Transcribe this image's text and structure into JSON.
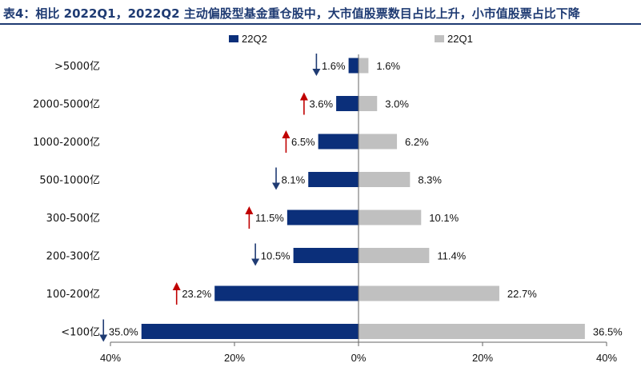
{
  "title": "表4：相比 2022Q1，2022Q2 主动偏股型基金重仓股中，大市值股票数目占比上升，小市值股票占比下降",
  "chart_data": {
    "type": "bar",
    "orientation": "horizontal-butterfly",
    "categories": [
      ">5000亿",
      "2000-5000亿",
      "1000-2000亿",
      "500-1000亿",
      "300-500亿",
      "200-300亿",
      "100-200亿",
      "<100亿"
    ],
    "series": [
      {
        "name": "22Q2",
        "color": "#0b2f7a",
        "side": "left",
        "values": [
          1.6,
          3.6,
          6.5,
          8.1,
          11.5,
          10.5,
          23.2,
          35.0
        ],
        "labels": [
          "1.6%",
          "3.6%",
          "6.5%",
          "8.1%",
          "11.5%",
          "10.5%",
          "23.2%",
          "35.0%"
        ]
      },
      {
        "name": "22Q1",
        "color": "#c0c0c0",
        "side": "right",
        "values": [
          1.6,
          3.0,
          6.2,
          8.3,
          10.1,
          11.4,
          22.7,
          36.5
        ],
        "labels": [
          "1.6%",
          "3.0%",
          "6.2%",
          "8.3%",
          "10.1%",
          "11.4%",
          "22.7%",
          "36.5%"
        ]
      }
    ],
    "change_arrows": [
      "down",
      "up",
      "up",
      "down",
      "up",
      "down",
      "up",
      "down"
    ],
    "arrow_colors": {
      "up": "#c00000",
      "down": "#1f3b73"
    },
    "xlim": [
      -40,
      40
    ],
    "xticks": [
      -40,
      -20,
      0,
      20,
      40
    ],
    "xtick_labels": [
      "40%",
      "20%",
      "0%",
      "20%",
      "40%"
    ],
    "legend_position": "top"
  }
}
